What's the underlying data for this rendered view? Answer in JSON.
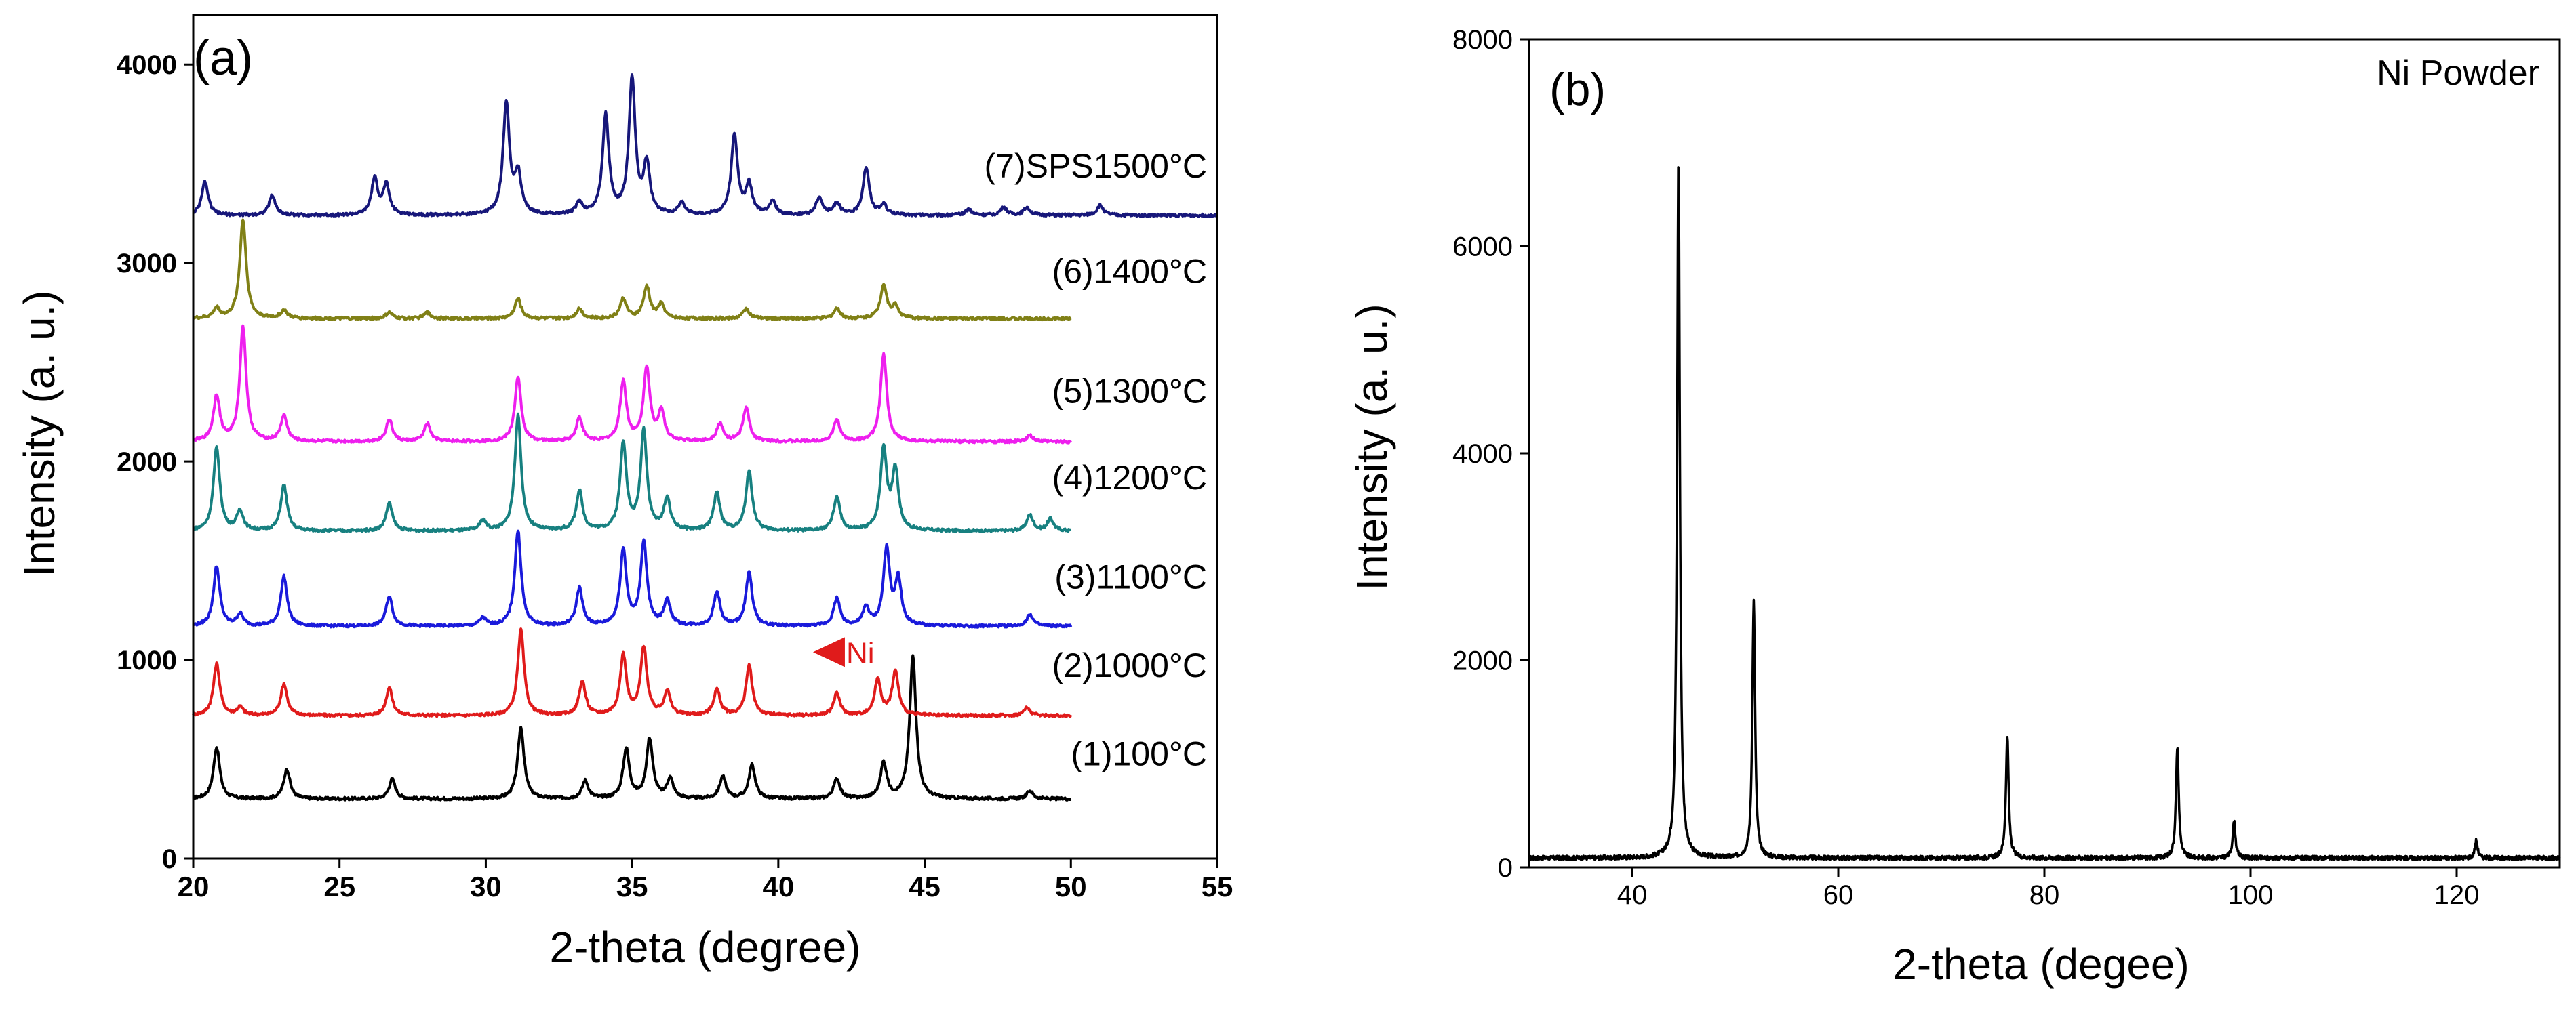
{
  "chart_data": [
    {
      "panel": "(a)",
      "type": "line",
      "xlabel": "2-theta (degree)",
      "ylabel": "Intensity (a. u.)",
      "xlim": [
        20,
        55
      ],
      "ylim": [
        0,
        4250
      ],
      "xticks": [
        20,
        25,
        30,
        35,
        40,
        45,
        50,
        55
      ],
      "yticks": [
        0,
        1000,
        2000,
        3000,
        4000
      ],
      "annotation": {
        "text": "Ni",
        "x": 41.3,
        "y": 1040,
        "color": "#e01b1b"
      },
      "series": [
        {
          "name": "(1)100°C",
          "color": "#000000",
          "base": 300,
          "xend": 50,
          "labelY": 470,
          "peaks": [
            [
              20.8,
              260
            ],
            [
              23.2,
              150
            ],
            [
              26.8,
              100
            ],
            [
              31.2,
              360
            ],
            [
              33.4,
              90
            ],
            [
              34.8,
              250
            ],
            [
              35.6,
              300
            ],
            [
              36.3,
              100
            ],
            [
              38.1,
              110
            ],
            [
              39.1,
              170
            ],
            [
              42.0,
              100
            ],
            [
              43.6,
              180
            ],
            [
              44.6,
              720
            ],
            [
              48.6,
              40
            ]
          ]
        },
        {
          "name": "(2)1000°C",
          "color": "#e01b1b",
          "base": 720,
          "xend": 50,
          "labelY": 915,
          "peaks": [
            [
              20.8,
              260
            ],
            [
              21.6,
              40
            ],
            [
              23.1,
              160
            ],
            [
              26.7,
              140
            ],
            [
              31.2,
              430
            ],
            [
              33.3,
              170
            ],
            [
              34.7,
              300
            ],
            [
              35.4,
              340
            ],
            [
              36.2,
              120
            ],
            [
              37.9,
              130
            ],
            [
              39.0,
              250
            ],
            [
              42.0,
              110
            ],
            [
              43.4,
              180
            ],
            [
              44.0,
              220
            ],
            [
              48.5,
              40
            ]
          ]
        },
        {
          "name": "(3)1100°C",
          "color": "#1a1adb",
          "base": 1170,
          "xend": 50,
          "labelY": 1360,
          "peaks": [
            [
              20.8,
              300
            ],
            [
              21.6,
              60
            ],
            [
              23.1,
              250
            ],
            [
              26.7,
              150
            ],
            [
              29.9,
              40
            ],
            [
              31.1,
              480
            ],
            [
              33.2,
              190
            ],
            [
              34.7,
              380
            ],
            [
              35.4,
              420
            ],
            [
              36.2,
              130
            ],
            [
              37.9,
              170
            ],
            [
              39.0,
              270
            ],
            [
              42.0,
              140
            ],
            [
              43.0,
              90
            ],
            [
              43.7,
              380
            ],
            [
              44.1,
              230
            ],
            [
              48.6,
              60
            ]
          ]
        },
        {
          "name": "(4)1200°C",
          "color": "#178080",
          "base": 1650,
          "xend": 50,
          "labelY": 1860,
          "peaks": [
            [
              20.8,
              420
            ],
            [
              21.6,
              100
            ],
            [
              23.1,
              230
            ],
            [
              26.7,
              140
            ],
            [
              29.9,
              50
            ],
            [
              31.1,
              580
            ],
            [
              33.2,
              200
            ],
            [
              34.7,
              440
            ],
            [
              35.4,
              500
            ],
            [
              36.2,
              160
            ],
            [
              37.9,
              190
            ],
            [
              39.0,
              300
            ],
            [
              42.0,
              170
            ],
            [
              43.6,
              410
            ],
            [
              44.0,
              300
            ],
            [
              48.6,
              80
            ],
            [
              49.3,
              60
            ]
          ]
        },
        {
          "name": "(5)1300°C",
          "color": "#ee1fee",
          "base": 2100,
          "xend": 50,
          "labelY": 2295,
          "peaks": [
            [
              20.8,
              230
            ],
            [
              21.7,
              580
            ],
            [
              23.1,
              130
            ],
            [
              26.7,
              110
            ],
            [
              28.0,
              90
            ],
            [
              31.1,
              320
            ],
            [
              33.2,
              120
            ],
            [
              34.7,
              300
            ],
            [
              35.5,
              370
            ],
            [
              36.0,
              150
            ],
            [
              38.0,
              90
            ],
            [
              38.9,
              170
            ],
            [
              42.0,
              110
            ],
            [
              43.6,
              440
            ],
            [
              48.6,
              30
            ]
          ]
        },
        {
          "name": "(6)1400°C",
          "color": "#808016",
          "base": 2720,
          "xend": 50,
          "labelY": 2900,
          "peaks": [
            [
              20.8,
              50
            ],
            [
              21.7,
              500
            ],
            [
              23.1,
              40
            ],
            [
              26.7,
              30
            ],
            [
              28.0,
              30
            ],
            [
              31.1,
              100
            ],
            [
              33.2,
              50
            ],
            [
              34.7,
              100
            ],
            [
              35.5,
              160
            ],
            [
              36.0,
              70
            ],
            [
              38.9,
              50
            ],
            [
              42.0,
              50
            ],
            [
              43.6,
              170
            ],
            [
              44.0,
              60
            ]
          ]
        },
        {
          "name": "(7)SPS1500°C",
          "color": "#17177a",
          "base": 3240,
          "xend": 55,
          "labelY": 3430,
          "peaks": [
            [
              20.4,
              170
            ],
            [
              22.7,
              100
            ],
            [
              26.2,
              180
            ],
            [
              26.6,
              150
            ],
            [
              30.7,
              560
            ],
            [
              31.1,
              200
            ],
            [
              33.2,
              60
            ],
            [
              34.1,
              500
            ],
            [
              35.0,
              680
            ],
            [
              35.5,
              250
            ],
            [
              36.7,
              60
            ],
            [
              38.5,
              400
            ],
            [
              39.0,
              150
            ],
            [
              39.8,
              70
            ],
            [
              41.4,
              90
            ],
            [
              42.0,
              60
            ],
            [
              43.0,
              240
            ],
            [
              43.6,
              50
            ],
            [
              46.5,
              30
            ],
            [
              47.7,
              40
            ],
            [
              48.5,
              40
            ],
            [
              51.0,
              50
            ]
          ]
        }
      ]
    },
    {
      "panel": "(b)",
      "type": "line",
      "title": "Ni Powder",
      "xlabel": "2-theta (degee)",
      "ylabel": "Intensity (a. u.)",
      "xlim": [
        30,
        130
      ],
      "ylim": [
        0,
        8000
      ],
      "xticks": [
        40,
        60,
        80,
        100,
        120
      ],
      "yticks": [
        0,
        2000,
        4000,
        6000,
        8000
      ],
      "series": [
        {
          "name": "Ni Powder",
          "color": "#000000",
          "base": 90,
          "peaks": [
            [
              44.5,
              6780
            ],
            [
              51.8,
              2480
            ],
            [
              76.4,
              1180
            ],
            [
              92.9,
              1080
            ],
            [
              98.4,
              360
            ],
            [
              121.9,
              170
            ]
          ]
        }
      ]
    }
  ]
}
